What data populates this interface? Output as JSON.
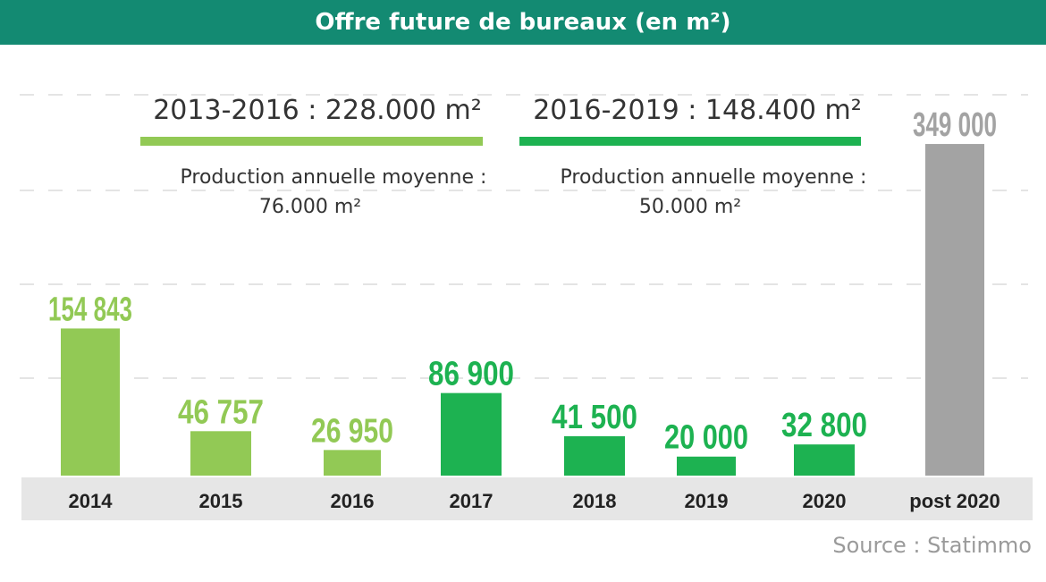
{
  "header": {
    "title": "Offre future de bureaux (en m²)"
  },
  "source": "Source : Statimmo",
  "colors": {
    "header": "#138a72",
    "light_green": "#92c955",
    "dark_green": "#1db251",
    "grey": "#a3a3a3",
    "axis_band": "#e6e6e6"
  },
  "chart_data": {
    "type": "bar",
    "title": "Offre future de bureaux (en m²)",
    "categories": [
      "2014",
      "2015",
      "2016",
      "2017",
      "2018",
      "2019",
      "2020",
      "post 2020"
    ],
    "values": [
      154843,
      46757,
      26950,
      86900,
      41500,
      20000,
      32800,
      349000
    ],
    "value_labels": [
      "154 843",
      "46 757",
      "26 950",
      "86 900",
      "41 500",
      "20 000",
      "32 800",
      "349 000"
    ],
    "bar_colors": [
      "#92c955",
      "#92c955",
      "#92c955",
      "#1db251",
      "#1db251",
      "#1db251",
      "#1db251",
      "#a3a3a3"
    ],
    "xlabel": "",
    "ylabel": "",
    "ylim": [
      0,
      350000
    ],
    "grid": "dashed",
    "periods": [
      {
        "label": "2013-2016 : 228.000 m²",
        "line1": "Production annuelle moyenne :",
        "line2": "76.000 m²",
        "color": "#92c955"
      },
      {
        "label": "2016-2019 : 148.400 m²",
        "line1": "Production annuelle moyenne :",
        "line2": "50.000 m²",
        "color": "#1db251"
      }
    ]
  }
}
